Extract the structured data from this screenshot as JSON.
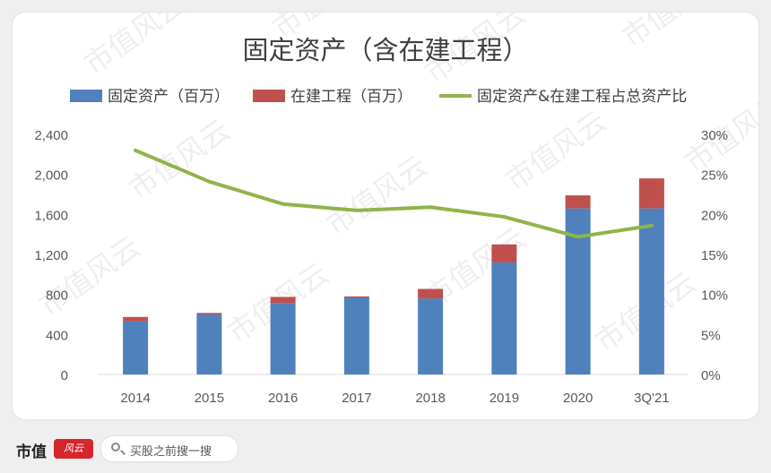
{
  "chart_data": {
    "type": "bar",
    "title": "固定资产（含在建工程）",
    "categories": [
      "2014",
      "2015",
      "2016",
      "2017",
      "2018",
      "2019",
      "2020",
      "3Q'21"
    ],
    "series": [
      {
        "name": "固定资产（百万）",
        "type": "bar",
        "stack": "a",
        "color": "#4f81bd",
        "values": [
          530,
          600,
          715,
          770,
          760,
          1120,
          1660,
          1660
        ]
      },
      {
        "name": "在建工程（百万）",
        "type": "bar",
        "stack": "a",
        "color": "#c0504d",
        "values": [
          45,
          15,
          60,
          10,
          95,
          180,
          130,
          300
        ]
      },
      {
        "name": "固定资产&在建工程占总资产比",
        "type": "line",
        "axis": "right",
        "color": "#8fb44a",
        "values": [
          28.0,
          24.1,
          21.3,
          20.5,
          20.9,
          19.7,
          17.2,
          18.6
        ]
      }
    ],
    "y_left": {
      "min": 0,
      "max": 2400,
      "ticks": [
        "0",
        "400",
        "800",
        "1,200",
        "1,600",
        "2,000",
        "2,400"
      ]
    },
    "y_right": {
      "min": 0,
      "max": 30,
      "ticks": [
        "0%",
        "5%",
        "10%",
        "15%",
        "20%",
        "25%",
        "30%"
      ]
    },
    "legend_position": "top",
    "grid": false
  },
  "watermark": "市值风云",
  "footer": {
    "brand": "市值",
    "brand_logo": "风云",
    "search_text": "买股之前搜一搜",
    "search_icon": "search-icon"
  }
}
